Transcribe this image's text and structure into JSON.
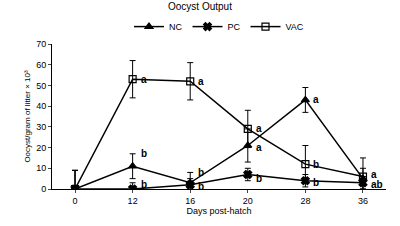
{
  "chart_data": {
    "type": "line",
    "title": "Oocyst Output",
    "x_label": "Days post-hatch",
    "y_label": "Oocyst/gram of litter × 10³",
    "categories": [
      "0",
      "12",
      "16",
      "20",
      "28",
      "36"
    ],
    "series": [
      {
        "name": "NC",
        "color": "#000000",
        "marker": "triangle-up",
        "values": [
          0,
          11,
          3,
          21,
          43,
          5
        ],
        "errors": [
          9,
          6,
          5,
          8,
          6,
          5
        ]
      },
      {
        "name": "PC",
        "color": "#000000",
        "marker": "x",
        "values": [
          0,
          0,
          2,
          7,
          4,
          3
        ],
        "errors": [
          9,
          3,
          3,
          3,
          3,
          3
        ]
      },
      {
        "name": "VAC",
        "color": "#000000",
        "marker": "square-open",
        "values": [
          0,
          53,
          52,
          29,
          12,
          6
        ],
        "errors": [
          9,
          9,
          9,
          9,
          9,
          9
        ]
      }
    ],
    "annotations": [
      {
        "x": "12",
        "y": 53,
        "text": "a"
      },
      {
        "x": "12",
        "y": 17,
        "text": "b"
      },
      {
        "x": "12",
        "y": 2,
        "text": "b"
      },
      {
        "x": "16",
        "y": 52,
        "text": "a"
      },
      {
        "x": "16",
        "y": 8,
        "text": "b"
      },
      {
        "x": "16",
        "y": 1,
        "text": "b"
      },
      {
        "x": "20",
        "y": 29,
        "text": "a"
      },
      {
        "x": "20",
        "y": 20,
        "text": "a"
      },
      {
        "x": "20",
        "y": 5,
        "text": "b"
      },
      {
        "x": "28",
        "y": 43,
        "text": "a"
      },
      {
        "x": "28",
        "y": 12,
        "text": "b"
      },
      {
        "x": "28",
        "y": 3,
        "text": "b"
      },
      {
        "x": "36",
        "y": 7,
        "text": "a"
      },
      {
        "x": "36",
        "y": 2,
        "text": "ab"
      }
    ],
    "ylim": [
      0,
      70
    ],
    "yticks": [
      0,
      10,
      20,
      30,
      40,
      50,
      60,
      70
    ],
    "grid": false,
    "legend": "top"
  }
}
